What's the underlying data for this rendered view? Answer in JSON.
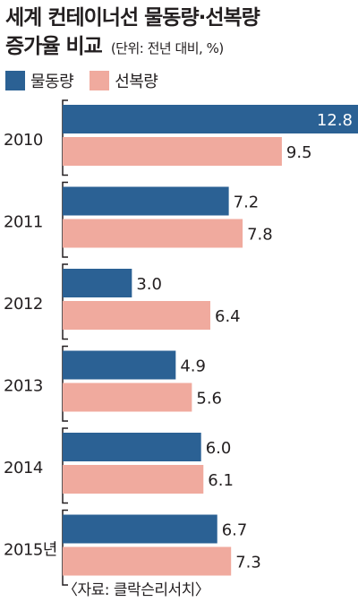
{
  "title_line1": "세계 컨테이너선 물동량·선복량",
  "title_line2": "증가율 비교",
  "unit": "(단위: 전년 대비, %)",
  "source": "〈자료: 클락슨리서치〉",
  "colors": {
    "volume": "#2b6194",
    "capacity": "#f0aa9e",
    "axis": "#231f20"
  },
  "chart_data": {
    "type": "bar",
    "orientation": "horizontal",
    "title": "세계 컨테이너선 물동량·선복량 증가율 비교",
    "unit": "(단위: 전년 대비, %)",
    "categories": [
      "2010",
      "2011",
      "2012",
      "2013",
      "2014",
      "2015년"
    ],
    "series": [
      {
        "name": "물동량",
        "values": [
          12.8,
          7.2,
          3.0,
          4.9,
          6.0,
          6.7
        ]
      },
      {
        "name": "선복량",
        "values": [
          9.5,
          7.8,
          6.4,
          5.6,
          6.1,
          7.3
        ]
      }
    ],
    "value_labels": {
      "물동량": [
        "12.8",
        "7.2",
        "3.0",
        "4.9",
        "6.0",
        "6.7"
      ],
      "선복량": [
        "9.5",
        "7.8",
        "6.4",
        "5.6",
        "6.1",
        "7.3"
      ]
    },
    "xlim": [
      0,
      12.8
    ],
    "legend_position": "top-left",
    "grid": false
  }
}
